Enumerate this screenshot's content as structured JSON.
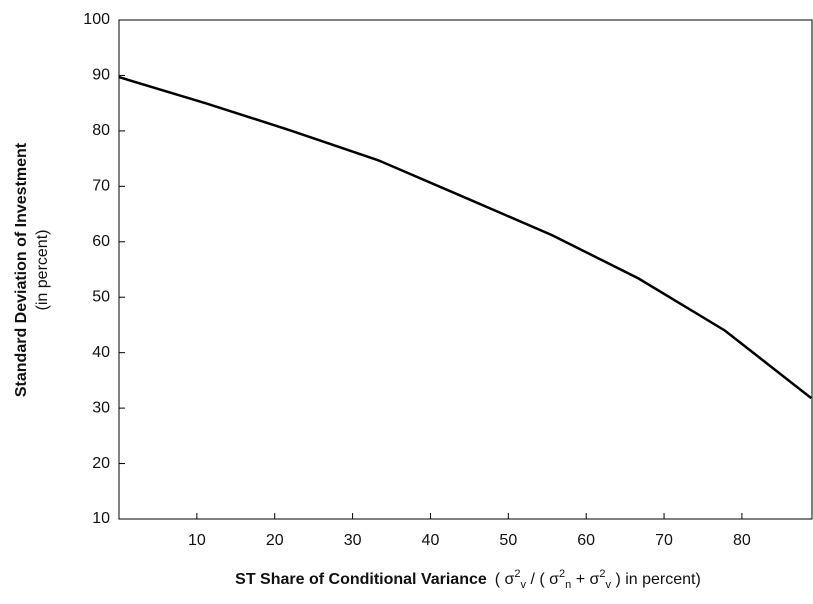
{
  "chart_data": {
    "type": "line",
    "ylabel": [
      "Standard Deviation of Investment",
      "(in percent)"
    ],
    "xlabel_parts": [
      "ST Share of Conditional Variance",
      "( σ",
      "2",
      "v",
      " / ( σ",
      "2",
      "n",
      " + σ",
      "2",
      "v",
      " ) in percent)"
    ],
    "x": [
      0,
      11.1,
      22.2,
      33.3,
      44.4,
      55.6,
      66.7,
      77.8,
      88.9
    ],
    "series": [
      {
        "name": "Standard Deviation of Investment",
        "color": "#000000",
        "values": [
          89.7,
          85,
          80,
          74.7,
          68,
          61.2,
          53.4,
          44,
          31.8
        ]
      }
    ],
    "xlim": [
      0,
      89
    ],
    "xticks": [
      10,
      20,
      30,
      40,
      50,
      60,
      70,
      80
    ],
    "ylim": [
      10,
      100
    ],
    "yticks": [
      10,
      20,
      30,
      40,
      50,
      60,
      70,
      80,
      90,
      100
    ],
    "grid": false
  }
}
